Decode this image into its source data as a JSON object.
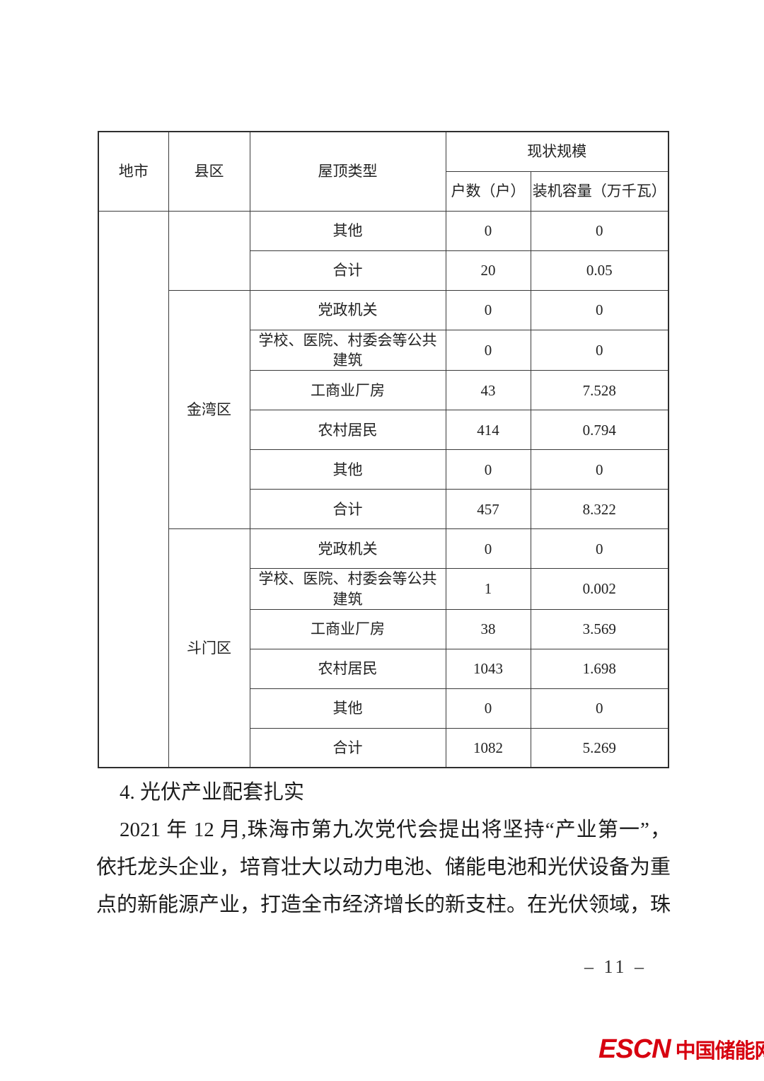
{
  "page": {
    "number_label": "– 11 –"
  },
  "table": {
    "headers": {
      "city": "地市",
      "district": "县区",
      "roof_type": "屋顶类型",
      "current_scale": "现状规模",
      "households": "户数（户）",
      "capacity": "装机容量（万千瓦）"
    },
    "city_value": "",
    "sections": [
      {
        "district": "",
        "rows": [
          [
            "其他",
            "0",
            "0"
          ],
          [
            "合计",
            "20",
            "0.05"
          ]
        ]
      },
      {
        "district": "金湾区",
        "rows": [
          [
            "党政机关",
            "0",
            "0"
          ],
          [
            "学校、医院、村委会等公共建筑",
            "0",
            "0"
          ],
          [
            "工商业厂房",
            "43",
            "7.528"
          ],
          [
            "农村居民",
            "414",
            "0.794"
          ],
          [
            "其他",
            "0",
            "0"
          ],
          [
            "合计",
            "457",
            "8.322"
          ]
        ]
      },
      {
        "district": "斗门区",
        "rows": [
          [
            "党政机关",
            "0",
            "0"
          ],
          [
            "学校、医院、村委会等公共建筑",
            "1",
            "0.002"
          ],
          [
            "工商业厂房",
            "38",
            "3.569"
          ],
          [
            "农村居民",
            "1043",
            "1.698"
          ],
          [
            "其他",
            "0",
            "0"
          ],
          [
            "合计",
            "1082",
            "5.269"
          ]
        ]
      }
    ]
  },
  "content": {
    "heading": "4. 光伏产业配套扎实",
    "paragraph": "2021 年 12 月,珠海市第九次党代会提出将坚持“产业第一”，依托龙头企业，培育壮大以动力电池、储能电池和光伏设备为重点的新能源产业，打造全市经济增长的新支柱。在光伏领域，珠"
  },
  "footer": {
    "logo_escn": "ESCN",
    "logo_cn": "中国储能网",
    "logo_color": "#d7000f"
  }
}
